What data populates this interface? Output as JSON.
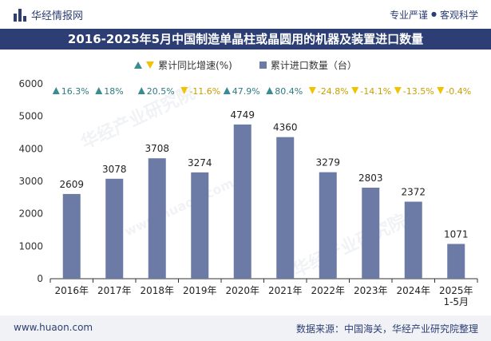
{
  "header": {
    "brand": "华经情报网",
    "tagline_left": "专业严谨",
    "tagline_sep": "●",
    "tagline_right": "客观科学"
  },
  "title": "2016-2025年5月中国制造单晶柱或晶圆用的机器及装置进口数量",
  "legend": {
    "growth_label": "累计同比增速(%)",
    "volume_label": "累计进口数量（台）"
  },
  "footer": {
    "url": "www.huaon.com",
    "source": "数据来源：中国海关，华经产业研究院整理"
  },
  "watermarks": [
    "华经产业研究院",
    "www.huaon.com"
  ],
  "colors": {
    "bar": "#6c7ba5",
    "up": "#3b8b92",
    "down": "#f2c200",
    "brand": "#2c3e73"
  },
  "chart_data": {
    "type": "bar",
    "categories": [
      "2016年",
      "2017年",
      "2018年",
      "2019年",
      "2020年",
      "2021年",
      "2022年",
      "2023年",
      "2024年",
      "2025年\n1-5月"
    ],
    "series": [
      {
        "name": "累计进口数量（台）",
        "values": [
          2609,
          3078,
          3708,
          3274,
          4749,
          4360,
          3279,
          2803,
          2372,
          1071
        ]
      },
      {
        "name": "累计同比增速(%)",
        "values": [
          16.3,
          18,
          20.5,
          -11.6,
          47.9,
          80.4,
          -24.8,
          -14.1,
          -13.5,
          -0.4
        ]
      }
    ],
    "growth_labels": [
      "16.3%",
      "18%",
      "20.5%",
      "-11.6%",
      "47.9%",
      "80.4%",
      "-24.8%",
      "-14.1%",
      "-13.5%",
      "-0.4%"
    ],
    "ylim": [
      0,
      6000
    ],
    "yticks": [
      0,
      1000,
      2000,
      3000,
      4000,
      5000,
      6000
    ],
    "grid": false
  }
}
